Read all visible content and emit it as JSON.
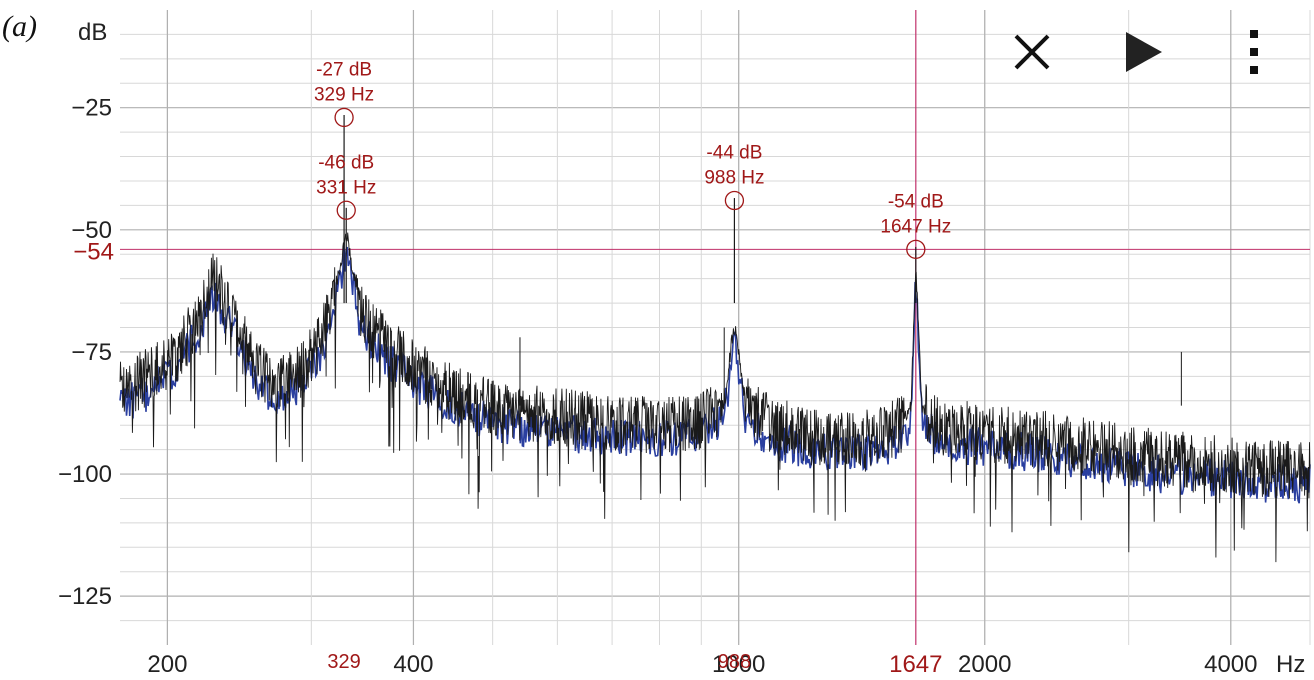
{
  "panel_label": "(a)",
  "toolbar": {
    "close_icon": "close-icon",
    "play_icon": "play-icon",
    "menu_icon": "more-vertical-icon"
  },
  "colors": {
    "trace_primary": "#1a1a1a",
    "trace_secondary": "#2a3fa0",
    "marker": "#a01818",
    "cursor": "#c0306a",
    "grid_major": "#b0b0b0",
    "grid_minor": "#d8d8d8"
  },
  "chart_data": {
    "type": "line",
    "title": "",
    "xlabel": "Hz",
    "ylabel": "dB",
    "x_scale": "log",
    "xlim": [
      175,
      5000
    ],
    "ylim": [
      -135,
      -5
    ],
    "grid": true,
    "x_ticks": [
      {
        "value": 200,
        "label": "200"
      },
      {
        "value": 400,
        "label": "400"
      },
      {
        "value": 1000,
        "label": "1000"
      },
      {
        "value": 2000,
        "label": "2000"
      },
      {
        "value": 4000,
        "label": "4000"
      }
    ],
    "y_ticks": [
      {
        "value": -25,
        "label": "−25"
      },
      {
        "value": -50,
        "label": "−50"
      },
      {
        "value": -75,
        "label": "−75"
      },
      {
        "value": -100,
        "label": "−100"
      },
      {
        "value": -125,
        "label": "−125"
      }
    ],
    "markers": [
      {
        "freq": 329,
        "db": -27,
        "label_db": "-27 dB",
        "label_hz": "329 Hz"
      },
      {
        "freq": 331,
        "db": -46,
        "label_db": "-46 dB",
        "label_hz": "331 Hz"
      },
      {
        "freq": 988,
        "db": -44,
        "label_db": "-44 dB",
        "label_hz": "988 Hz"
      },
      {
        "freq": 1647,
        "db": -54,
        "label_db": "-54 dB",
        "label_hz": "1647 Hz"
      }
    ],
    "cursor": {
      "freq": 1647,
      "db": -54,
      "label_freq": "1647",
      "label_db": "−54"
    },
    "x_peak_labels": [
      {
        "freq": 329,
        "label": "329"
      },
      {
        "freq": 988,
        "label": "988"
      }
    ],
    "series": [
      {
        "x": [
          175,
          190,
          205,
          218,
          228,
          240,
          255,
          270,
          290,
          305,
          318,
          326,
          331,
          336,
          345,
          360,
          380,
          400,
          430,
          470,
          520,
          580,
          650,
          730,
          820,
          900,
          960,
          985,
          991,
          1020,
          1100,
          1200,
          1300,
          1400,
          1500,
          1580,
          1625,
          1645,
          1650,
          1675,
          1750,
          1900,
          2100,
          2400,
          2800,
          3300,
          3900,
          4500,
          5000
        ],
        "y": [
          -83,
          -80,
          -76,
          -68,
          -60,
          -67,
          -78,
          -81,
          -79,
          -74,
          -65,
          -57,
          -50,
          -57,
          -67,
          -71,
          -75,
          -78,
          -82,
          -85,
          -87,
          -88,
          -89,
          -90,
          -90,
          -89,
          -86,
          -70,
          -70,
          -86,
          -90,
          -92,
          -93,
          -93,
          -92,
          -90,
          -86,
          -60,
          -60,
          -86,
          -90,
          -91,
          -92,
          -93,
          -95,
          -97,
          -98,
          -99,
          -99
        ]
      }
    ],
    "spikes": [
      {
        "freq": 960,
        "db": -70
      },
      {
        "freq": 540,
        "db": -72
      },
      {
        "freq": 3480,
        "db": -75
      }
    ]
  }
}
